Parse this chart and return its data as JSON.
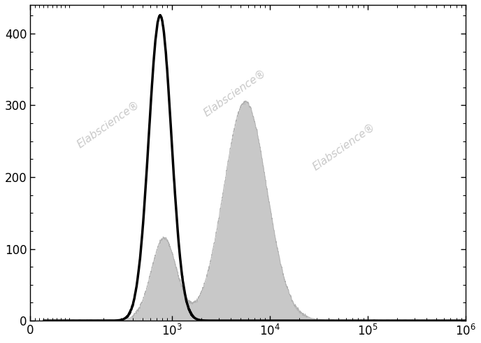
{
  "ylim": [
    0,
    440
  ],
  "yticks": [
    0,
    100,
    200,
    300,
    400
  ],
  "background_color": "#ffffff",
  "unstained_peak_log": 2.88,
  "unstained_peak_height": 425,
  "unstained_sigma": 0.115,
  "stained_peak1_log": 2.92,
  "stained_peak1_height": 115,
  "stained_peak1_sigma": 0.13,
  "stained_peak2_log": 3.75,
  "stained_peak2_height": 305,
  "stained_peak2_sigma": 0.22,
  "watermark_text": "Elabscience®",
  "watermark_color": "#c8c8c8",
  "hist_fill_color": "#c8c8c8",
  "line_color": "#000000",
  "line_width": 2.5,
  "symlog_linthresh": 100,
  "symlog_linscale": 0.4,
  "xmin": 0,
  "xmax": 1000000
}
